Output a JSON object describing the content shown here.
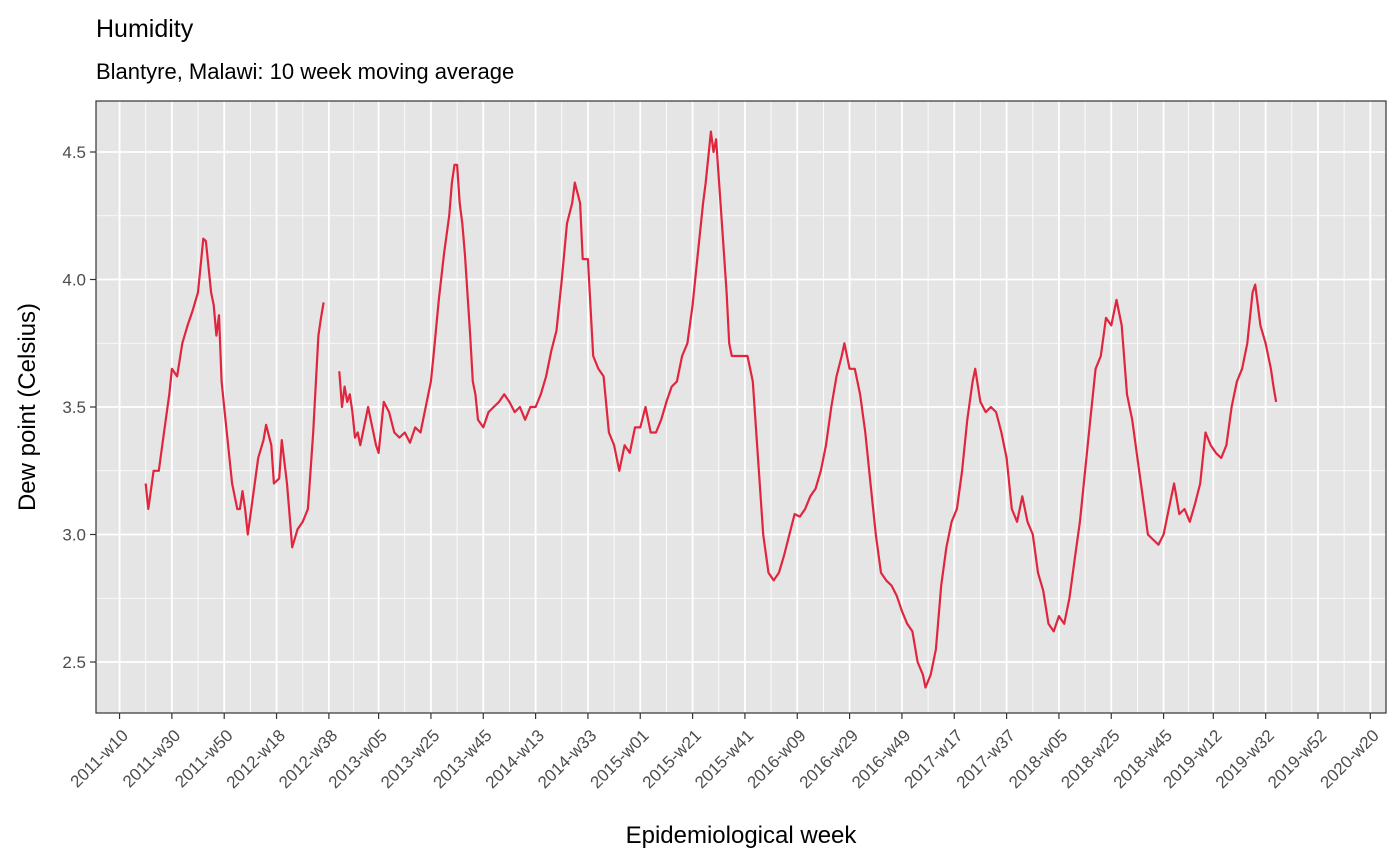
{
  "chart_data": {
    "type": "line",
    "title": "Humidity",
    "subtitle": "Blantyre, Malawi: 10 week moving average",
    "xlabel": "Epidemiological week",
    "ylabel": "Dew point (Celsius)",
    "x_unit": "epidemiological week",
    "xlim": [
      "2011-w01",
      "2020-w26"
    ],
    "ylim": [
      2.3,
      4.7
    ],
    "yticks": [
      2.5,
      3.0,
      3.5,
      4.0,
      4.5
    ],
    "ytick_labels": [
      "2.5",
      "3.0",
      "3.5",
      "4.0",
      "4.5"
    ],
    "xticks": [
      "2011-w10",
      "2011-w30",
      "2011-w50",
      "2012-w18",
      "2012-w38",
      "2013-w05",
      "2013-w25",
      "2013-w45",
      "2014-w13",
      "2014-w33",
      "2015-w01",
      "2015-w21",
      "2015-w41",
      "2016-w09",
      "2016-w29",
      "2016-w49",
      "2017-w17",
      "2017-w37",
      "2018-w05",
      "2018-w25",
      "2018-w45",
      "2019-w12",
      "2019-w32",
      "2019-w52",
      "2020-w20"
    ],
    "grid": true,
    "legend": "none",
    "colors": {
      "line": "#e0263e",
      "panel": "#e5e5e5",
      "grid": "#ffffff"
    },
    "series": [
      {
        "segments": [
          [
            [
              "2011-w20",
              3.2
            ],
            [
              "2011-w21",
              3.1
            ],
            [
              "2011-w23",
              3.25
            ],
            [
              "2011-w25",
              3.25
            ],
            [
              "2011-w27",
              3.4
            ],
            [
              "2011-w29",
              3.55
            ],
            [
              "2011-w30",
              3.65
            ],
            [
              "2011-w32",
              3.62
            ],
            [
              "2011-w34",
              3.75
            ],
            [
              "2011-w36",
              3.82
            ],
            [
              "2011-w38",
              3.88
            ],
            [
              "2011-w40",
              3.95
            ],
            [
              "2011-w42",
              4.16
            ],
            [
              "2011-w43",
              4.15
            ],
            [
              "2011-w45",
              3.95
            ],
            [
              "2011-w46",
              3.9
            ],
            [
              "2011-w47",
              3.78
            ],
            [
              "2011-w48",
              3.86
            ],
            [
              "2011-w49",
              3.6
            ],
            [
              "2011-w51",
              3.4
            ],
            [
              "2012-w01",
              3.2
            ],
            [
              "2012-w03",
              3.1
            ],
            [
              "2012-w04",
              3.1
            ],
            [
              "2012-w05",
              3.17
            ],
            [
              "2012-w06",
              3.1
            ],
            [
              "2012-w07",
              3.0
            ],
            [
              "2012-w09",
              3.15
            ],
            [
              "2012-w11",
              3.3
            ],
            [
              "2012-w13",
              3.37
            ],
            [
              "2012-w14",
              3.43
            ],
            [
              "2012-w16",
              3.35
            ],
            [
              "2012-w17",
              3.2
            ],
            [
              "2012-w19",
              3.22
            ],
            [
              "2012-w20",
              3.37
            ],
            [
              "2012-w22",
              3.2
            ],
            [
              "2012-w24",
              2.95
            ],
            [
              "2012-w26",
              3.02
            ],
            [
              "2012-w28",
              3.05
            ],
            [
              "2012-w30",
              3.1
            ],
            [
              "2012-w32",
              3.4
            ],
            [
              "2012-w34",
              3.78
            ],
            [
              "2012-w35",
              3.85
            ],
            [
              "2012-w36",
              3.91
            ]
          ],
          [
            [
              "2012-w42",
              3.64
            ],
            [
              "2012-w43",
              3.5
            ],
            [
              "2012-w44",
              3.58
            ],
            [
              "2012-w45",
              3.52
            ],
            [
              "2012-w46",
              3.55
            ],
            [
              "2012-w47",
              3.48
            ],
            [
              "2012-w48",
              3.38
            ],
            [
              "2012-w49",
              3.4
            ],
            [
              "2012-w50",
              3.35
            ],
            [
              "2012-w51",
              3.4
            ],
            [
              "2013-w01",
              3.5
            ],
            [
              "2013-w02",
              3.45
            ],
            [
              "2013-w03",
              3.4
            ],
            [
              "2013-w04",
              3.35
            ],
            [
              "2013-w05",
              3.32
            ],
            [
              "2013-w07",
              3.52
            ],
            [
              "2013-w09",
              3.48
            ],
            [
              "2013-w11",
              3.4
            ],
            [
              "2013-w13",
              3.38
            ],
            [
              "2013-w15",
              3.4
            ],
            [
              "2013-w17",
              3.36
            ],
            [
              "2013-w19",
              3.42
            ],
            [
              "2013-w21",
              3.4
            ],
            [
              "2013-w23",
              3.5
            ],
            [
              "2013-w25",
              3.6
            ],
            [
              "2013-w26",
              3.7
            ],
            [
              "2013-w28",
              3.92
            ],
            [
              "2013-w30",
              4.1
            ],
            [
              "2013-w32",
              4.25
            ],
            [
              "2013-w33",
              4.38
            ],
            [
              "2013-w34",
              4.45
            ],
            [
              "2013-w35",
              4.45
            ],
            [
              "2013-w36",
              4.3
            ],
            [
              "2013-w37",
              4.22
            ],
            [
              "2013-w38",
              4.1
            ],
            [
              "2013-w40",
              3.78
            ],
            [
              "2013-w41",
              3.6
            ],
            [
              "2013-w42",
              3.55
            ],
            [
              "2013-w43",
              3.45
            ],
            [
              "2013-w45",
              3.42
            ],
            [
              "2013-w47",
              3.48
            ],
            [
              "2013-w49",
              3.5
            ],
            [
              "2013-w51",
              3.52
            ],
            [
              "2014-w01",
              3.55
            ],
            [
              "2014-w03",
              3.52
            ],
            [
              "2014-w05",
              3.48
            ],
            [
              "2014-w07",
              3.5
            ],
            [
              "2014-w09",
              3.45
            ],
            [
              "2014-w11",
              3.5
            ],
            [
              "2014-w13",
              3.5
            ],
            [
              "2014-w15",
              3.55
            ],
            [
              "2014-w17",
              3.62
            ],
            [
              "2014-w19",
              3.72
            ],
            [
              "2014-w21",
              3.8
            ],
            [
              "2014-w23",
              4.0
            ],
            [
              "2014-w25",
              4.22
            ],
            [
              "2014-w27",
              4.3
            ],
            [
              "2014-w28",
              4.38
            ],
            [
              "2014-w30",
              4.3
            ],
            [
              "2014-w31",
              4.08
            ],
            [
              "2014-w33",
              4.08
            ],
            [
              "2014-w35",
              3.7
            ],
            [
              "2014-w37",
              3.65
            ],
            [
              "2014-w39",
              3.62
            ],
            [
              "2014-w41",
              3.4
            ],
            [
              "2014-w43",
              3.35
            ],
            [
              "2014-w45",
              3.25
            ],
            [
              "2014-w47",
              3.35
            ],
            [
              "2014-w49",
              3.32
            ],
            [
              "2014-w51",
              3.42
            ],
            [
              "2015-w01",
              3.42
            ],
            [
              "2015-w03",
              3.5
            ],
            [
              "2015-w05",
              3.4
            ],
            [
              "2015-w07",
              3.4
            ],
            [
              "2015-w09",
              3.45
            ],
            [
              "2015-w11",
              3.52
            ],
            [
              "2015-w13",
              3.58
            ],
            [
              "2015-w15",
              3.6
            ],
            [
              "2015-w17",
              3.7
            ],
            [
              "2015-w19",
              3.75
            ],
            [
              "2015-w21",
              3.9
            ],
            [
              "2015-w23",
              4.1
            ],
            [
              "2015-w25",
              4.3
            ],
            [
              "2015-w26",
              4.38
            ],
            [
              "2015-w28",
              4.58
            ],
            [
              "2015-w29",
              4.5
            ],
            [
              "2015-w30",
              4.55
            ],
            [
              "2015-w32",
              4.25
            ],
            [
              "2015-w34",
              3.95
            ],
            [
              "2015-w35",
              3.75
            ],
            [
              "2015-w36",
              3.7
            ],
            [
              "2015-w38",
              3.7
            ],
            [
              "2015-w40",
              3.7
            ],
            [
              "2015-w42",
              3.7
            ],
            [
              "2015-w44",
              3.6
            ],
            [
              "2015-w46",
              3.3
            ],
            [
              "2015-w48",
              3.0
            ],
            [
              "2015-w50",
              2.85
            ],
            [
              "2015-w52",
              2.82
            ],
            [
              "2016-w02",
              2.85
            ],
            [
              "2016-w04",
              2.92
            ],
            [
              "2016-w06",
              3.0
            ],
            [
              "2016-w08",
              3.08
            ],
            [
              "2016-w10",
              3.07
            ],
            [
              "2016-w12",
              3.1
            ],
            [
              "2016-w14",
              3.15
            ],
            [
              "2016-w16",
              3.18
            ],
            [
              "2016-w18",
              3.25
            ],
            [
              "2016-w20",
              3.35
            ],
            [
              "2016-w22",
              3.5
            ],
            [
              "2016-w24",
              3.62
            ],
            [
              "2016-w26",
              3.7
            ],
            [
              "2016-w27",
              3.75
            ],
            [
              "2016-w29",
              3.65
            ],
            [
              "2016-w31",
              3.65
            ],
            [
              "2016-w33",
              3.55
            ],
            [
              "2016-w35",
              3.4
            ],
            [
              "2016-w37",
              3.2
            ],
            [
              "2016-w39",
              3.0
            ],
            [
              "2016-w41",
              2.85
            ],
            [
              "2016-w43",
              2.82
            ],
            [
              "2016-w45",
              2.8
            ],
            [
              "2016-w47",
              2.76
            ],
            [
              "2016-w49",
              2.7
            ],
            [
              "2016-w51",
              2.65
            ],
            [
              "2017-w01",
              2.62
            ],
            [
              "2017-w03",
              2.5
            ],
            [
              "2017-w05",
              2.45
            ],
            [
              "2017-w06",
              2.4
            ],
            [
              "2017-w08",
              2.45
            ],
            [
              "2017-w10",
              2.55
            ],
            [
              "2017-w12",
              2.8
            ],
            [
              "2017-w14",
              2.95
            ],
            [
              "2017-w16",
              3.05
            ],
            [
              "2017-w18",
              3.1
            ],
            [
              "2017-w20",
              3.25
            ],
            [
              "2017-w22",
              3.45
            ],
            [
              "2017-w24",
              3.6
            ],
            [
              "2017-w25",
              3.65
            ],
            [
              "2017-w27",
              3.52
            ],
            [
              "2017-w29",
              3.48
            ],
            [
              "2017-w31",
              3.5
            ],
            [
              "2017-w33",
              3.48
            ],
            [
              "2017-w35",
              3.4
            ],
            [
              "2017-w37",
              3.3
            ],
            [
              "2017-w39",
              3.1
            ],
            [
              "2017-w41",
              3.05
            ],
            [
              "2017-w43",
              3.15
            ],
            [
              "2017-w45",
              3.05
            ],
            [
              "2017-w47",
              3.0
            ],
            [
              "2017-w49",
              2.85
            ],
            [
              "2017-w51",
              2.78
            ],
            [
              "2018-w01",
              2.65
            ],
            [
              "2018-w03",
              2.62
            ],
            [
              "2018-w05",
              2.68
            ],
            [
              "2018-w07",
              2.65
            ],
            [
              "2018-w09",
              2.75
            ],
            [
              "2018-w11",
              2.9
            ],
            [
              "2018-w13",
              3.05
            ],
            [
              "2018-w15",
              3.25
            ],
            [
              "2018-w17",
              3.45
            ],
            [
              "2018-w19",
              3.65
            ],
            [
              "2018-w21",
              3.7
            ],
            [
              "2018-w23",
              3.85
            ],
            [
              "2018-w25",
              3.82
            ],
            [
              "2018-w27",
              3.92
            ],
            [
              "2018-w29",
              3.82
            ],
            [
              "2018-w31",
              3.55
            ],
            [
              "2018-w33",
              3.45
            ],
            [
              "2018-w35",
              3.3
            ],
            [
              "2018-w37",
              3.15
            ],
            [
              "2018-w39",
              3.0
            ],
            [
              "2018-w41",
              2.98
            ],
            [
              "2018-w43",
              2.96
            ],
            [
              "2018-w45",
              3.0
            ],
            [
              "2018-w47",
              3.1
            ],
            [
              "2018-w49",
              3.2
            ],
            [
              "2018-w51",
              3.08
            ],
            [
              "2019-w01",
              3.1
            ],
            [
              "2019-w03",
              3.05
            ],
            [
              "2019-w05",
              3.12
            ],
            [
              "2019-w07",
              3.2
            ],
            [
              "2019-w09",
              3.4
            ],
            [
              "2019-w11",
              3.35
            ],
            [
              "2019-w13",
              3.32
            ],
            [
              "2019-w15",
              3.3
            ],
            [
              "2019-w17",
              3.35
            ],
            [
              "2019-w19",
              3.5
            ],
            [
              "2019-w21",
              3.6
            ],
            [
              "2019-w23",
              3.65
            ],
            [
              "2019-w25",
              3.75
            ],
            [
              "2019-w27",
              3.95
            ],
            [
              "2019-w28",
              3.98
            ],
            [
              "2019-w30",
              3.82
            ],
            [
              "2019-w32",
              3.75
            ],
            [
              "2019-w34",
              3.65
            ],
            [
              "2019-w35",
              3.58
            ],
            [
              "2019-w36",
              3.52
            ]
          ]
        ]
      }
    ]
  }
}
